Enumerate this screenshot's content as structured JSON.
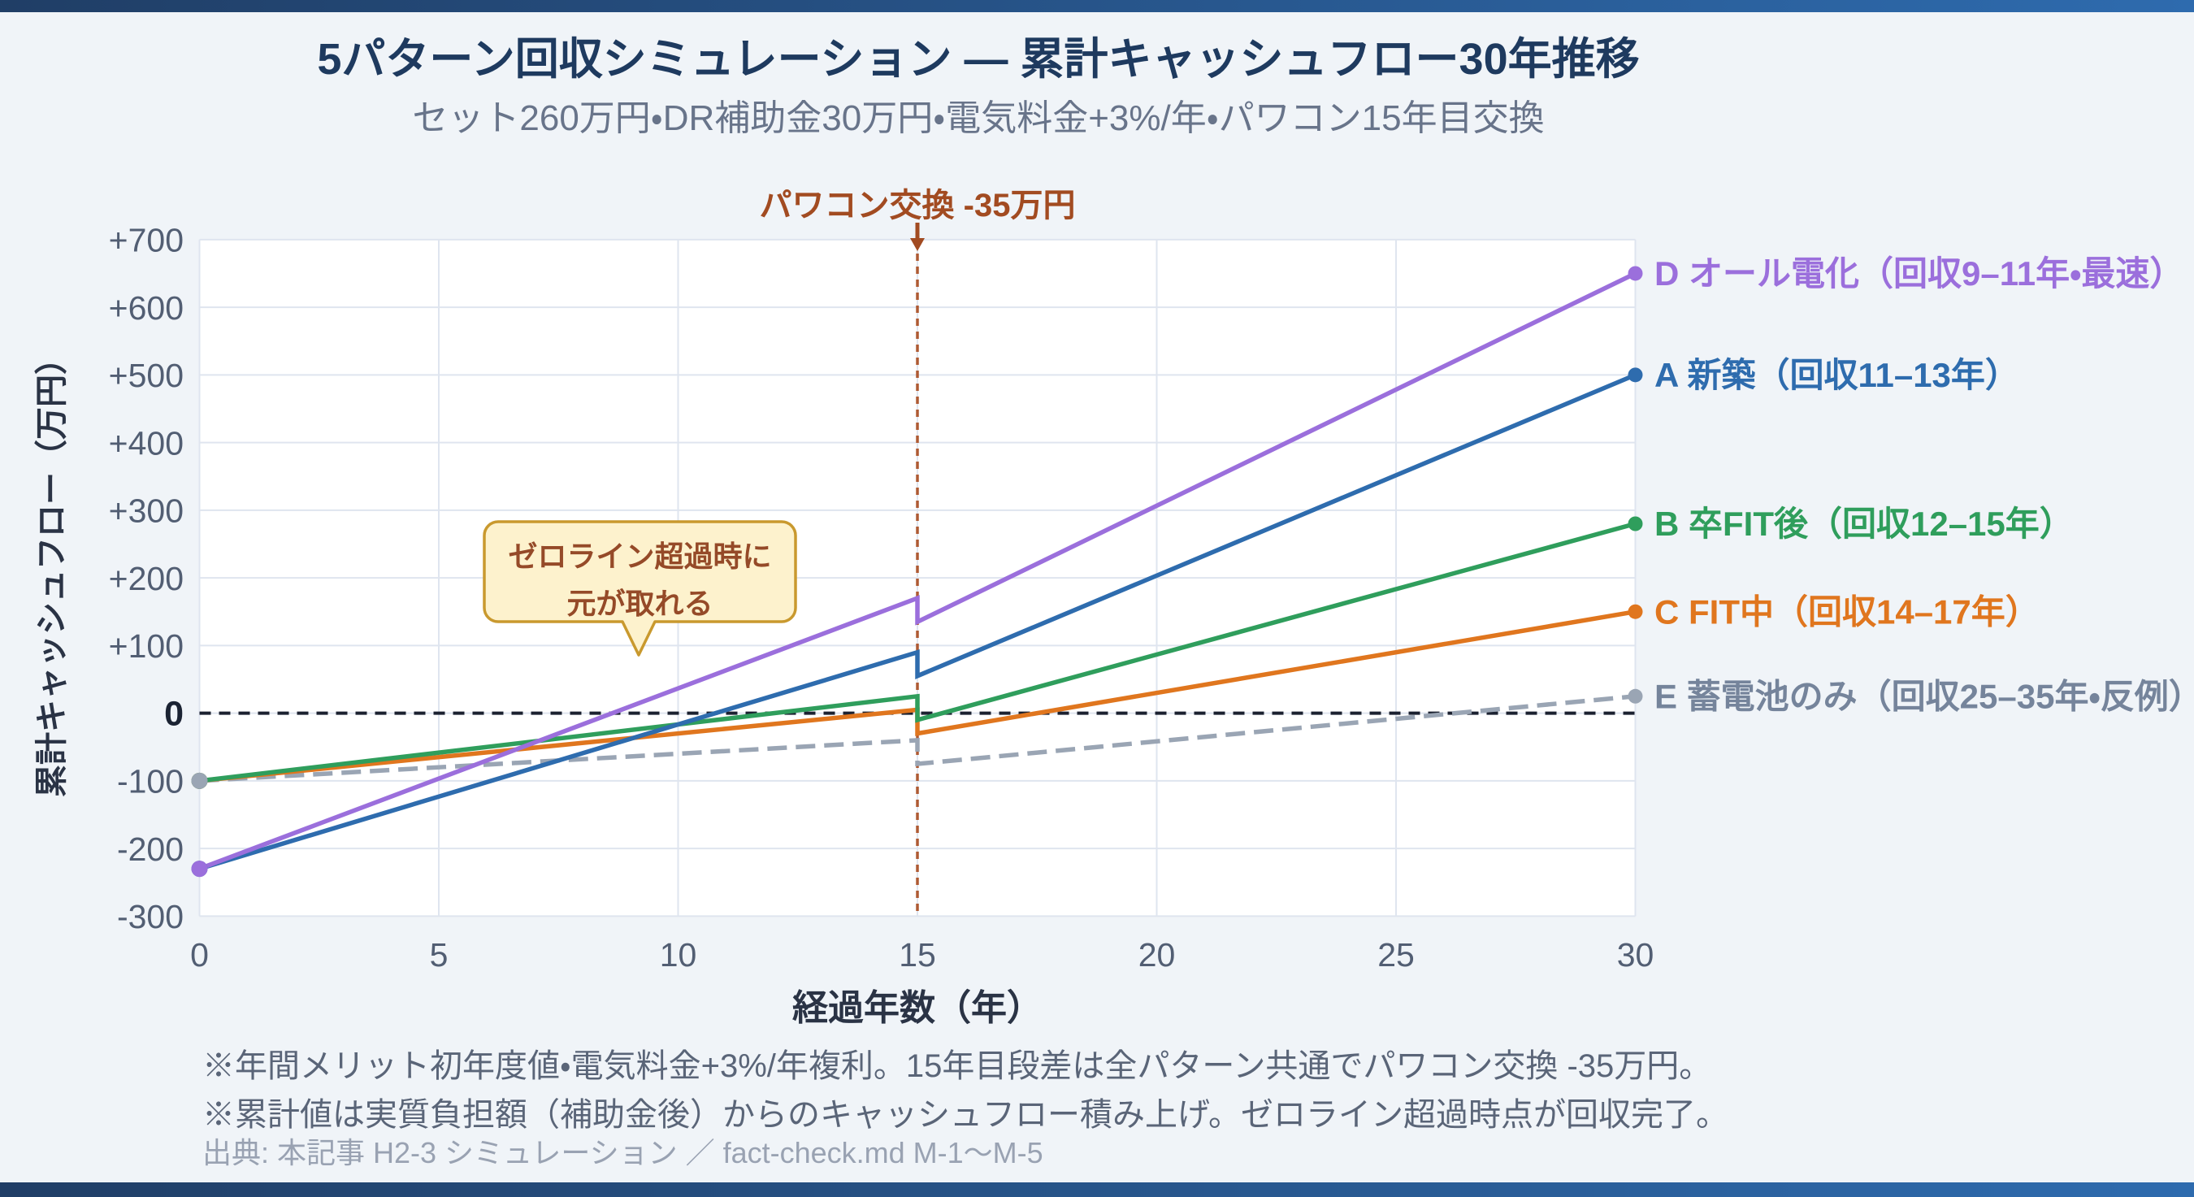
{
  "accent": {
    "bar_gradient_left": "#203e66",
    "bar_gradient_right": "#2e6bae",
    "page_background": "#f0f4f8",
    "plot_background": "#ffffff",
    "grid_color": "#dfe5ef"
  },
  "chart_data": {
    "type": "line",
    "title": "5パターン回収シミュレーション ― 累計キャッシュフロー30年推移",
    "subtitle": "セット260万円・DR補助金30万円・電気料金+3%/年・パワコン15年目交換",
    "xlabel": "経過年数（年）",
    "ylabel": "累計キャッシュフロー（万円）",
    "xlim": [
      0,
      30
    ],
    "ylim": [
      -300,
      700
    ],
    "x_ticks": [
      0,
      5,
      10,
      15,
      20,
      25,
      30
    ],
    "y_ticks": [
      {
        "v": 700,
        "label": "+700"
      },
      {
        "v": 600,
        "label": "+600"
      },
      {
        "v": 500,
        "label": "+500"
      },
      {
        "v": 400,
        "label": "+400"
      },
      {
        "v": 300,
        "label": "+300"
      },
      {
        "v": 200,
        "label": "+200"
      },
      {
        "v": 100,
        "label": "+100"
      },
      {
        "v": 0,
        "label": "0"
      },
      {
        "v": -100,
        "label": "-100"
      },
      {
        "v": -200,
        "label": "-200"
      },
      {
        "v": -300,
        "label": "-300"
      }
    ],
    "grid": true,
    "legend_position": "right-of-line-ends",
    "zero_line": {
      "value": 0,
      "color": "#1b2130",
      "style": "dashed"
    },
    "event_line": {
      "x": 15,
      "label": "パワコン交換 -35万円",
      "label_color": "#a24b21",
      "line_color": "#ae5a33",
      "style": "dashed"
    },
    "callout": {
      "text_lines": [
        "ゼロライン超過時に",
        "元が取れる"
      ],
      "fill": "#fdf2cd",
      "border": "#c9992e",
      "text_color": "#954a28"
    },
    "series": [
      {
        "id": "E",
        "label": "E 蓄電池のみ（回収25–35年・反例）",
        "color": "#9aa5b4",
        "label_color": "#75849b",
        "style": "dashed",
        "points": [
          [
            0,
            -100
          ],
          [
            15,
            -40
          ],
          [
            15,
            -75
          ],
          [
            30,
            25
          ]
        ]
      },
      {
        "id": "C",
        "label": "C FIT中（回収14–17年）",
        "color": "#e0761e",
        "label_color": "#e0761e",
        "style": "solid",
        "points": [
          [
            0,
            -100
          ],
          [
            15,
            5
          ],
          [
            15,
            -30
          ],
          [
            30,
            150
          ]
        ]
      },
      {
        "id": "B",
        "label": "B 卒FIT後（回収12–15年）",
        "color": "#2f9e5c",
        "label_color": "#2f9e5c",
        "style": "solid",
        "points": [
          [
            0,
            -100
          ],
          [
            15,
            25
          ],
          [
            15,
            -10
          ],
          [
            30,
            280
          ]
        ]
      },
      {
        "id": "A",
        "label": "A 新築（回収11–13年）",
        "color": "#2e6cae",
        "label_color": "#2e6cae",
        "style": "solid",
        "points": [
          [
            0,
            -230
          ],
          [
            15,
            90
          ],
          [
            15,
            55
          ],
          [
            30,
            500
          ]
        ]
      },
      {
        "id": "D",
        "label": "D オール電化（回収9–11年・最速）",
        "color": "#9b6fdc",
        "label_color": "#9b6fdc",
        "style": "solid",
        "points": [
          [
            0,
            -230
          ],
          [
            15,
            170
          ],
          [
            15,
            135
          ],
          [
            30,
            650
          ]
        ]
      }
    ],
    "footnotes": [
      "※年間メリット初年度値・電気料金+3%/年複利。15年目段差は全パターン共通でパワコン交換 -35万円。",
      "※累計値は実質負担額（補助金後）からのキャッシュフロー積み上げ。ゼロライン超過時点が回収完了。"
    ],
    "source": "出典: 本記事 H2-3 シミュレーション ／ fact-check.md M-1〜M-5"
  }
}
